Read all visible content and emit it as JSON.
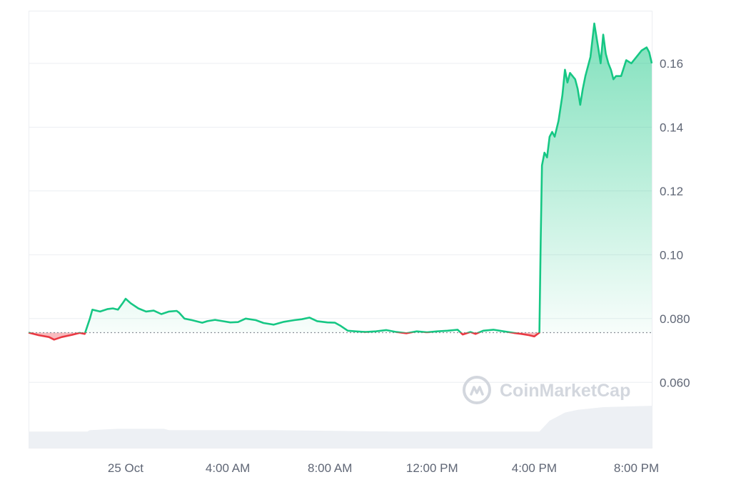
{
  "watermark": {
    "text": "CoinMarketCap"
  },
  "colors": {
    "up": "#16c784",
    "down": "#ea3943",
    "grid": "#eceef2",
    "baseline": "#8a8f98",
    "volume": "#edf0f4",
    "axis_text": "#5f6675"
  },
  "chart_data": {
    "type": "line",
    "title": "",
    "xlabel": "",
    "ylabel": "",
    "grid": true,
    "legend": "none",
    "x_unit": "hours since 24 Oct 20:00",
    "xlim": [
      0,
      24.4
    ],
    "ylim": [
      0.0395,
      0.1765
    ],
    "y_ticks": [
      {
        "value": 0.06,
        "label": "0.060"
      },
      {
        "value": 0.08,
        "label": "0.080"
      },
      {
        "value": 0.1,
        "label": "0.10"
      },
      {
        "value": 0.12,
        "label": "0.12"
      },
      {
        "value": 0.14,
        "label": "0.14"
      },
      {
        "value": 0.16,
        "label": "0.16"
      }
    ],
    "x_ticks": [
      {
        "value": 3.8,
        "label": "25 Oct"
      },
      {
        "value": 7.8,
        "label": "4:00 AM"
      },
      {
        "value": 11.8,
        "label": "8:00 AM"
      },
      {
        "value": 15.8,
        "label": "12:00 PM"
      },
      {
        "value": 19.8,
        "label": "4:00 PM"
      },
      {
        "value": 23.8,
        "label": "8:00 PM"
      }
    ],
    "baseline": 0.0756,
    "price": [
      [
        0.0,
        0.0756
      ],
      [
        0.4,
        0.0748
      ],
      [
        0.8,
        0.0742
      ],
      [
        1.0,
        0.0734
      ],
      [
        1.3,
        0.0742
      ],
      [
        1.7,
        0.0749
      ],
      [
        2.0,
        0.0755
      ],
      [
        2.2,
        0.0752
      ],
      [
        2.4,
        0.08
      ],
      [
        2.5,
        0.0828
      ],
      [
        2.8,
        0.0822
      ],
      [
        3.1,
        0.083
      ],
      [
        3.3,
        0.0832
      ],
      [
        3.5,
        0.0828
      ],
      [
        3.7,
        0.085
      ],
      [
        3.8,
        0.0862
      ],
      [
        4.0,
        0.0848
      ],
      [
        4.3,
        0.0832
      ],
      [
        4.6,
        0.0822
      ],
      [
        4.9,
        0.0825
      ],
      [
        5.2,
        0.0814
      ],
      [
        5.5,
        0.0822
      ],
      [
        5.8,
        0.0824
      ],
      [
        5.9,
        0.0818
      ],
      [
        6.1,
        0.08
      ],
      [
        6.4,
        0.0795
      ],
      [
        6.8,
        0.0787
      ],
      [
        7.0,
        0.0792
      ],
      [
        7.3,
        0.0796
      ],
      [
        7.6,
        0.0792
      ],
      [
        7.9,
        0.0788
      ],
      [
        8.2,
        0.0789
      ],
      [
        8.5,
        0.08
      ],
      [
        8.9,
        0.0795
      ],
      [
        9.2,
        0.0786
      ],
      [
        9.6,
        0.0781
      ],
      [
        10.0,
        0.079
      ],
      [
        10.4,
        0.0795
      ],
      [
        10.7,
        0.0798
      ],
      [
        11.0,
        0.0803
      ],
      [
        11.3,
        0.0792
      ],
      [
        11.7,
        0.0788
      ],
      [
        12.0,
        0.0787
      ],
      [
        12.2,
        0.0778
      ],
      [
        12.5,
        0.0762
      ],
      [
        12.8,
        0.076
      ],
      [
        13.2,
        0.0758
      ],
      [
        13.6,
        0.076
      ],
      [
        14.0,
        0.0764
      ],
      [
        14.4,
        0.0758
      ],
      [
        14.8,
        0.0754
      ],
      [
        15.2,
        0.076
      ],
      [
        15.6,
        0.0757
      ],
      [
        16.0,
        0.076
      ],
      [
        16.4,
        0.0762
      ],
      [
        16.8,
        0.0765
      ],
      [
        17.0,
        0.075
      ],
      [
        17.3,
        0.0758
      ],
      [
        17.5,
        0.0752
      ],
      [
        17.8,
        0.0762
      ],
      [
        18.2,
        0.0765
      ],
      [
        18.6,
        0.076
      ],
      [
        19.0,
        0.0755
      ],
      [
        19.3,
        0.0752
      ],
      [
        19.6,
        0.0748
      ],
      [
        19.8,
        0.0744
      ],
      [
        20.0,
        0.0756
      ],
      [
        20.05,
        0.104
      ],
      [
        20.1,
        0.128
      ],
      [
        20.2,
        0.132
      ],
      [
        20.3,
        0.1305
      ],
      [
        20.4,
        0.137
      ],
      [
        20.5,
        0.1385
      ],
      [
        20.6,
        0.137
      ],
      [
        20.75,
        0.142
      ],
      [
        20.9,
        0.15
      ],
      [
        21.0,
        0.158
      ],
      [
        21.1,
        0.154
      ],
      [
        21.2,
        0.157
      ],
      [
        21.4,
        0.155
      ],
      [
        21.5,
        0.152
      ],
      [
        21.6,
        0.147
      ],
      [
        21.7,
        0.152
      ],
      [
        21.8,
        0.156
      ],
      [
        22.0,
        0.162
      ],
      [
        22.15,
        0.1725
      ],
      [
        22.3,
        0.165
      ],
      [
        22.4,
        0.16
      ],
      [
        22.5,
        0.169
      ],
      [
        22.6,
        0.163
      ],
      [
        22.7,
        0.16
      ],
      [
        22.8,
        0.158
      ],
      [
        22.9,
        0.155
      ],
      [
        23.0,
        0.156
      ],
      [
        23.2,
        0.156
      ],
      [
        23.4,
        0.161
      ],
      [
        23.6,
        0.16
      ],
      [
        23.8,
        0.162
      ],
      [
        24.0,
        0.164
      ],
      [
        24.2,
        0.165
      ],
      [
        24.3,
        0.1635
      ],
      [
        24.4,
        0.16
      ]
    ],
    "volume_level": [
      [
        0.0,
        0.012
      ],
      [
        2.3,
        0.012
      ],
      [
        2.4,
        0.013
      ],
      [
        3.5,
        0.014
      ],
      [
        5.3,
        0.014
      ],
      [
        5.5,
        0.013
      ],
      [
        9.5,
        0.013
      ],
      [
        12.0,
        0.0125
      ],
      [
        14.5,
        0.012
      ],
      [
        18.0,
        0.012
      ],
      [
        20.0,
        0.012
      ],
      [
        20.4,
        0.02
      ],
      [
        21.0,
        0.026
      ],
      [
        21.5,
        0.028
      ],
      [
        22.5,
        0.03
      ],
      [
        24.4,
        0.031
      ]
    ],
    "volume_max": 0.05
  }
}
